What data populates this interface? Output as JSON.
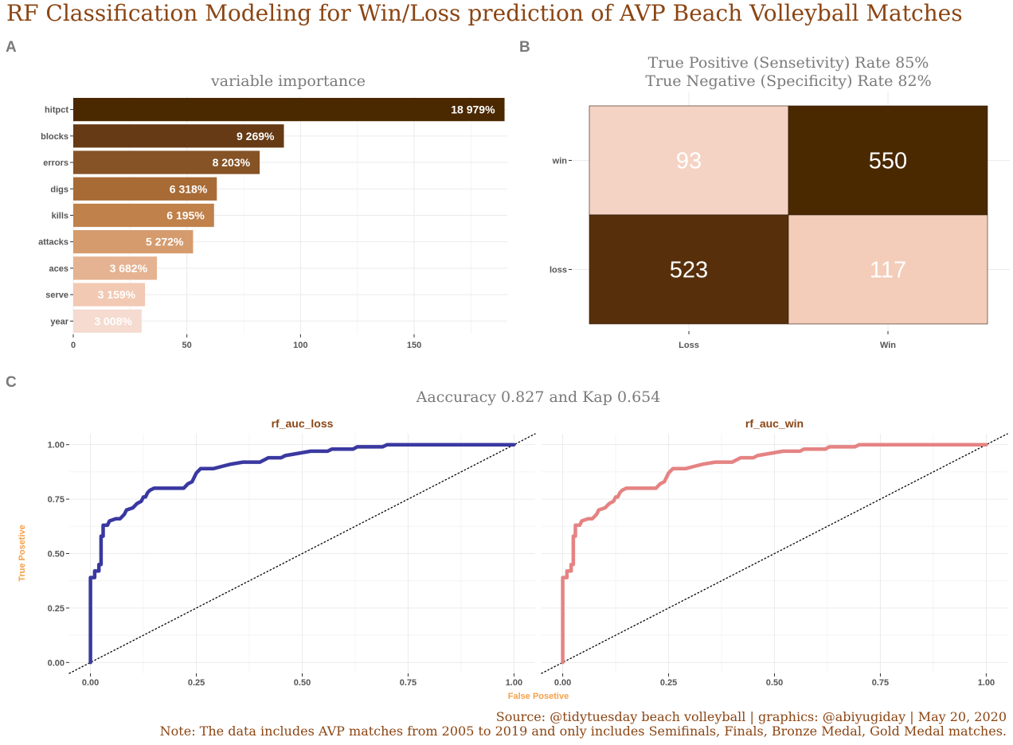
{
  "title": "RF Classification Modeling for Win/Loss prediction of AVP Beach Volleyball Matches",
  "panels": {
    "a": "A",
    "b": "B",
    "c": "C"
  },
  "colors": {
    "title": "#8B4513",
    "panel_letter": "#7a7a7a",
    "roc_loss": "#3a38a0",
    "roc_win": "#e58383",
    "axis_title_roc": "#f5a04a",
    "facet_strip_text": "#8B4513"
  },
  "chart_data": [
    {
      "type": "bar",
      "orientation": "horizontal",
      "title": "variable importance",
      "categories": [
        "hitpct",
        "blocks",
        "errors",
        "digs",
        "kills",
        "attacks",
        "aces",
        "serve",
        "year"
      ],
      "values": [
        189.79,
        92.69,
        82.03,
        63.18,
        61.95,
        52.72,
        36.82,
        31.59,
        30.08
      ],
      "data_labels": [
        "18 979%",
        "9 269%",
        "8 203%",
        "6 318%",
        "6 195%",
        "5 272%",
        "3 682%",
        "3 159%",
        "3 008%"
      ],
      "bar_colors": [
        "#4a2800",
        "#653a14",
        "#865326",
        "#a86b36",
        "#c0814a",
        "#d59b6d",
        "#e5b391",
        "#f2c9b3",
        "#f5dbd0"
      ],
      "x_ticks": [
        "0",
        "50",
        "100",
        "150"
      ],
      "xlim": [
        0,
        191
      ],
      "grid": true
    },
    {
      "type": "heatmap",
      "title_lines": [
        "True Positive (Sensetivity) Rate 85%",
        "True Negative (Specificity) Rate 82%"
      ],
      "x_categories": [
        "Loss",
        "Win"
      ],
      "y_categories": [
        "win",
        "loss"
      ],
      "cells": [
        {
          "x": "Loss",
          "y": "win",
          "value": "93",
          "fill": "#f5d3c4"
        },
        {
          "x": "Win",
          "y": "win",
          "value": "550",
          "fill": "#4a2800"
        },
        {
          "x": "Loss",
          "y": "loss",
          "value": "523",
          "fill": "#57300b"
        },
        {
          "x": "Win",
          "y": "loss",
          "value": "117",
          "fill": "#f3cdb9"
        }
      ]
    },
    {
      "type": "line",
      "title": "Aaccuracy 0.827 and Kap 0.654",
      "xlabel": "False Posetive",
      "ylabel": "True Posetive",
      "x_ticks": [
        "0.00",
        "0.25",
        "0.50",
        "0.75",
        "1.00"
      ],
      "y_ticks": [
        "0.00",
        "0.25",
        "0.50",
        "0.75",
        "1.00"
      ],
      "xlim": [
        -0.05,
        1.05
      ],
      "ylim": [
        -0.05,
        1.05
      ],
      "facets": [
        {
          "name": "rf_auc_loss",
          "color": "#3a38a0",
          "points": [
            [
              0,
              0
            ],
            [
              0,
              0.39
            ],
            [
              0.01,
              0.39
            ],
            [
              0.01,
              0.42
            ],
            [
              0.02,
              0.42
            ],
            [
              0.02,
              0.45
            ],
            [
              0.025,
              0.45
            ],
            [
              0.025,
              0.58
            ],
            [
              0.03,
              0.58
            ],
            [
              0.03,
              0.63
            ],
            [
              0.04,
              0.63
            ],
            [
              0.045,
              0.65
            ],
            [
              0.06,
              0.66
            ],
            [
              0.07,
              0.66
            ],
            [
              0.08,
              0.68
            ],
            [
              0.085,
              0.7
            ],
            [
              0.1,
              0.71
            ],
            [
              0.11,
              0.73
            ],
            [
              0.12,
              0.74
            ],
            [
              0.125,
              0.76
            ],
            [
              0.13,
              0.76
            ],
            [
              0.135,
              0.78
            ],
            [
              0.14,
              0.79
            ],
            [
              0.15,
              0.8
            ],
            [
              0.22,
              0.8
            ],
            [
              0.23,
              0.82
            ],
            [
              0.24,
              0.83
            ],
            [
              0.25,
              0.87
            ],
            [
              0.26,
              0.89
            ],
            [
              0.29,
              0.89
            ],
            [
              0.31,
              0.9
            ],
            [
              0.33,
              0.91
            ],
            [
              0.36,
              0.92
            ],
            [
              0.4,
              0.92
            ],
            [
              0.42,
              0.94
            ],
            [
              0.45,
              0.94
            ],
            [
              0.46,
              0.95
            ],
            [
              0.49,
              0.96
            ],
            [
              0.52,
              0.97
            ],
            [
              0.56,
              0.97
            ],
            [
              0.57,
              0.98
            ],
            [
              0.62,
              0.98
            ],
            [
              0.63,
              0.99
            ],
            [
              0.69,
              0.99
            ],
            [
              0.7,
              1
            ],
            [
              1,
              1
            ]
          ]
        },
        {
          "name": "rf_auc_win",
          "color": "#e58383",
          "points": [
            [
              0,
              0
            ],
            [
              0,
              0.39
            ],
            [
              0.01,
              0.39
            ],
            [
              0.01,
              0.42
            ],
            [
              0.02,
              0.42
            ],
            [
              0.02,
              0.45
            ],
            [
              0.025,
              0.45
            ],
            [
              0.025,
              0.58
            ],
            [
              0.03,
              0.58
            ],
            [
              0.03,
              0.63
            ],
            [
              0.04,
              0.63
            ],
            [
              0.045,
              0.65
            ],
            [
              0.06,
              0.66
            ],
            [
              0.07,
              0.66
            ],
            [
              0.08,
              0.68
            ],
            [
              0.085,
              0.7
            ],
            [
              0.1,
              0.71
            ],
            [
              0.11,
              0.73
            ],
            [
              0.12,
              0.74
            ],
            [
              0.125,
              0.76
            ],
            [
              0.13,
              0.76
            ],
            [
              0.135,
              0.78
            ],
            [
              0.14,
              0.79
            ],
            [
              0.15,
              0.8
            ],
            [
              0.22,
              0.8
            ],
            [
              0.23,
              0.82
            ],
            [
              0.24,
              0.83
            ],
            [
              0.25,
              0.87
            ],
            [
              0.26,
              0.89
            ],
            [
              0.29,
              0.89
            ],
            [
              0.31,
              0.9
            ],
            [
              0.33,
              0.91
            ],
            [
              0.36,
              0.92
            ],
            [
              0.4,
              0.92
            ],
            [
              0.42,
              0.94
            ],
            [
              0.45,
              0.94
            ],
            [
              0.46,
              0.95
            ],
            [
              0.49,
              0.96
            ],
            [
              0.52,
              0.97
            ],
            [
              0.56,
              0.97
            ],
            [
              0.57,
              0.98
            ],
            [
              0.62,
              0.98
            ],
            [
              0.63,
              0.99
            ],
            [
              0.69,
              0.99
            ],
            [
              0.7,
              1
            ],
            [
              1,
              1
            ]
          ]
        }
      ],
      "diagonal": {
        "from": [
          -0.05,
          -0.05
        ],
        "to": [
          1.05,
          1.05
        ],
        "style": "dotted"
      }
    }
  ],
  "footer": {
    "source": "Source: @tidytuesday beach volleyball | graphics: @abiyugiday | May 20, 2020",
    "note": "Note: The data includes AVP matches from 2005 to 2019 and only includes Semifinals, Finals, Bronze Medal, Gold Medal matches."
  }
}
